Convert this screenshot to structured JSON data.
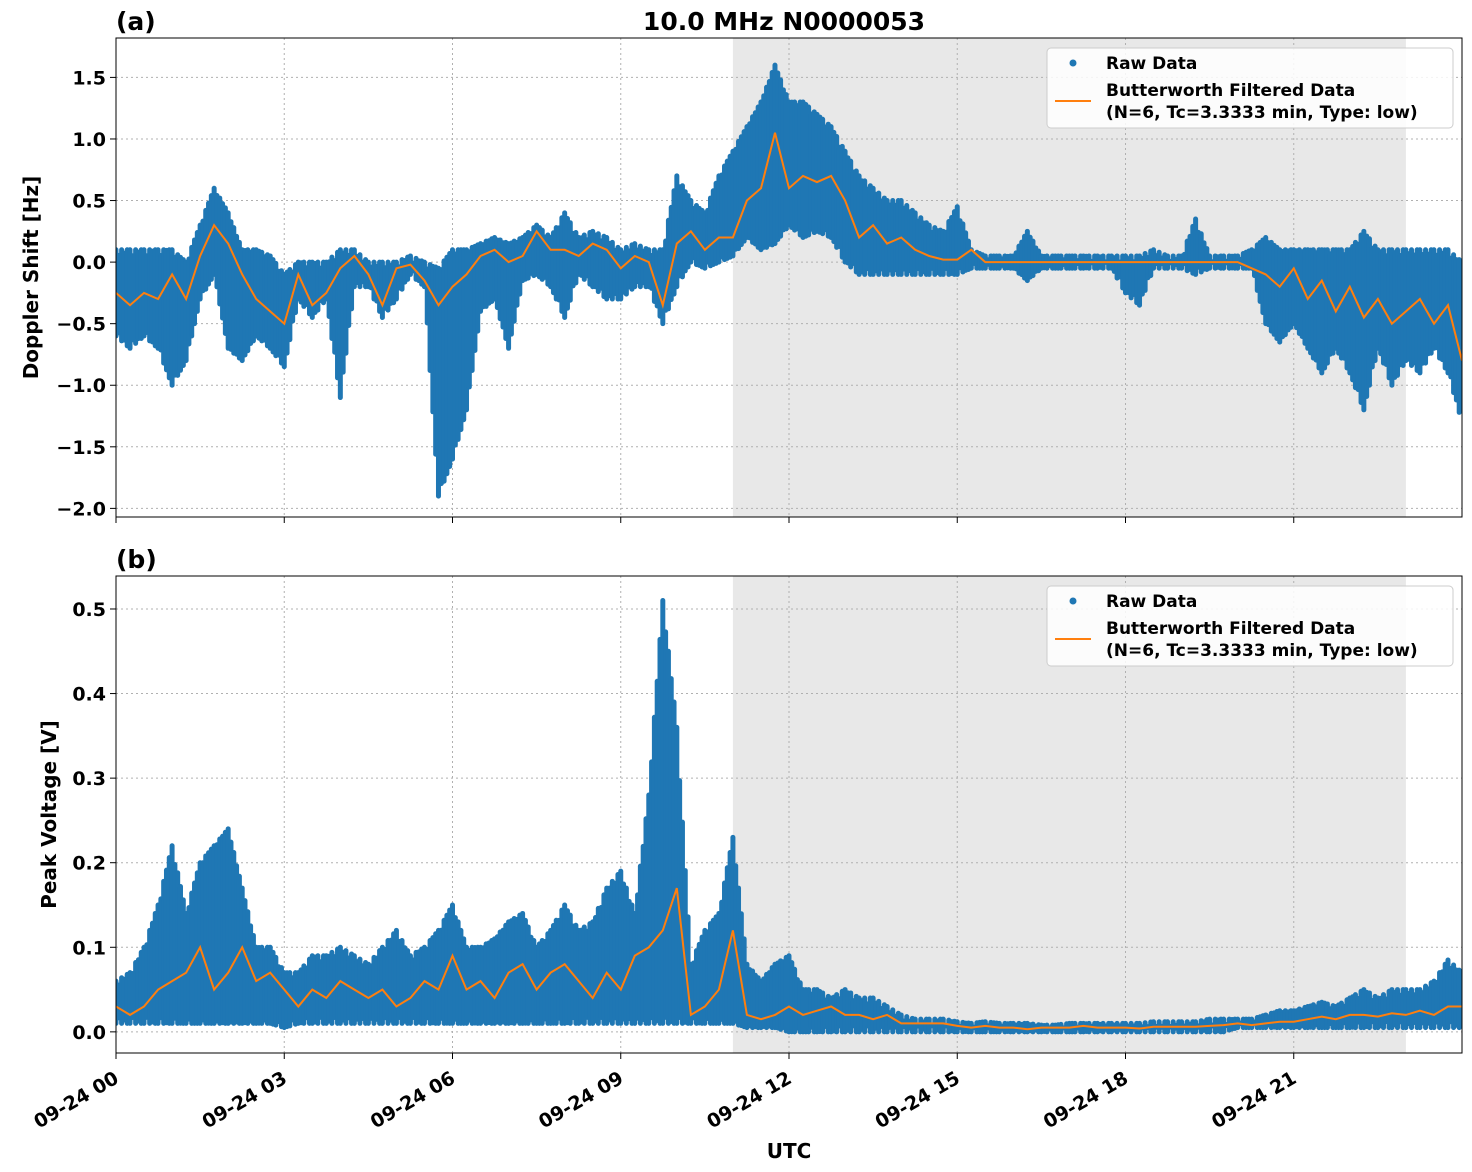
{
  "chart_data": {
    "title": "10.0 MHz N0000053",
    "xlabel": "UTC",
    "x_unit": "hours UTC on 09-24, sampled every 0.25 h",
    "xlim": [
      0,
      24
    ],
    "xticks": [
      0,
      3,
      6,
      9,
      12,
      15,
      18,
      21
    ],
    "xtick_labels": [
      "09-24 00",
      "09-24 03",
      "09-24 06",
      "09-24 09",
      "09-24 12",
      "09-24 15",
      "09-24 18",
      "09-24 21"
    ],
    "shaded_span": [
      11.0,
      23.0
    ],
    "colors": {
      "raw": "#1f77b4",
      "filtered": "#ff7f0e",
      "span": "#e8e8e8",
      "grid": "#b0b0b0"
    },
    "grid": true,
    "legend_placement": "top-right",
    "legend": [
      "Raw Data",
      "Butterworth Filtered Data",
      "(N=6, Tc=3.3333 min, Type: low)"
    ],
    "panels": [
      {
        "panel_label": "(a)",
        "type": "scatter+line",
        "ylabel": "Doppler Shift [Hz]",
        "ylim": [
          -2.07,
          1.82
        ],
        "yticks": [
          1.5,
          1.0,
          0.5,
          0.0,
          -0.5,
          -1.0,
          -1.5,
          -2.0
        ],
        "ytick_labels": [
          "1.5",
          "1.0",
          "0.5",
          "0.0",
          "−0.5",
          "−1.0",
          "−1.5",
          "−2.0"
        ],
        "filtered": [
          -0.25,
          -0.35,
          -0.25,
          -0.3,
          -0.1,
          -0.3,
          0.05,
          0.3,
          0.15,
          -0.1,
          -0.3,
          -0.4,
          -0.5,
          -0.1,
          -0.35,
          -0.25,
          -0.05,
          0.05,
          -0.1,
          -0.35,
          -0.05,
          -0.02,
          -0.15,
          -0.35,
          -0.2,
          -0.1,
          0.05,
          0.1,
          0.0,
          0.05,
          0.25,
          0.1,
          0.1,
          0.05,
          0.15,
          0.1,
          -0.05,
          0.05,
          0.0,
          -0.35,
          0.15,
          0.25,
          0.1,
          0.2,
          0.2,
          0.5,
          0.6,
          1.05,
          0.6,
          0.7,
          0.65,
          0.7,
          0.5,
          0.2,
          0.3,
          0.15,
          0.2,
          0.1,
          0.05,
          0.02,
          0.02,
          0.1,
          0.0,
          0.0,
          0,
          0,
          0,
          0,
          0,
          0,
          0,
          0,
          0,
          0,
          0,
          0,
          0,
          0,
          0,
          0,
          0.0,
          -0.05,
          -0.1,
          -0.2,
          -0.05,
          -0.3,
          -0.15,
          -0.4,
          -0.2,
          -0.45,
          -0.3,
          -0.5,
          -0.4,
          -0.3,
          -0.5,
          -0.35,
          -0.8
        ],
        "raw_max": [
          0.1,
          0.1,
          0.1,
          0.1,
          0.1,
          0.0,
          0.3,
          0.6,
          0.4,
          0.1,
          0.1,
          0.05,
          -0.1,
          0.0,
          0.0,
          0.0,
          0.1,
          0.1,
          0.0,
          0.0,
          0.0,
          0.05,
          0.0,
          -0.05,
          0.1,
          0.1,
          0.15,
          0.2,
          0.15,
          0.2,
          0.3,
          0.2,
          0.4,
          0.2,
          0.25,
          0.2,
          0.1,
          0.15,
          0.1,
          0.1,
          0.7,
          0.5,
          0.4,
          0.7,
          0.9,
          1.1,
          1.3,
          1.6,
          1.3,
          1.3,
          1.2,
          1.1,
          0.9,
          0.7,
          0.6,
          0.5,
          0.5,
          0.4,
          0.3,
          0.25,
          0.45,
          0.1,
          0.05,
          0.05,
          0.05,
          0.25,
          0.05,
          0.05,
          0.05,
          0.05,
          0.05,
          0.05,
          0.05,
          0.05,
          0.1,
          0.05,
          0.05,
          0.35,
          0.05,
          0.05,
          0.05,
          0.1,
          0.2,
          0.1,
          0.1,
          0.1,
          0.1,
          0.1,
          0.1,
          0.25,
          0.1,
          0.1,
          0.1,
          0.1,
          0.1,
          0.1,
          0.0
        ],
        "raw_min": [
          -0.6,
          -0.7,
          -0.6,
          -0.7,
          -1.0,
          -0.8,
          -0.3,
          -0.1,
          -0.7,
          -0.8,
          -0.6,
          -0.7,
          -0.85,
          -0.3,
          -0.45,
          -0.3,
          -1.1,
          -0.2,
          -0.2,
          -0.45,
          -0.3,
          -0.1,
          -0.2,
          -1.9,
          -1.6,
          -1.2,
          -0.4,
          -0.3,
          -0.7,
          -0.15,
          -0.1,
          -0.2,
          -0.45,
          -0.1,
          -0.2,
          -0.3,
          -0.3,
          -0.2,
          -0.2,
          -0.5,
          -0.2,
          0.0,
          -0.05,
          0.0,
          0.05,
          0.2,
          0.1,
          0.15,
          0.3,
          0.2,
          0.25,
          0.2,
          0.0,
          -0.1,
          -0.1,
          -0.1,
          -0.1,
          -0.1,
          -0.1,
          -0.1,
          -0.1,
          -0.05,
          -0.05,
          -0.05,
          -0.05,
          -0.15,
          -0.05,
          -0.05,
          -0.05,
          -0.05,
          -0.05,
          -0.05,
          -0.25,
          -0.35,
          -0.05,
          -0.05,
          -0.05,
          -0.1,
          -0.05,
          -0.05,
          -0.05,
          -0.05,
          -0.5,
          -0.65,
          -0.5,
          -0.7,
          -0.9,
          -0.7,
          -0.9,
          -1.2,
          -0.7,
          -1.0,
          -0.8,
          -0.9,
          -0.7,
          -0.9,
          -1.3
        ]
      },
      {
        "panel_label": "(b)",
        "type": "scatter+line",
        "ylabel": "Peak Voltage [V]",
        "ylim": [
          -0.025,
          0.539
        ],
        "yticks": [
          0.5,
          0.4,
          0.3,
          0.2,
          0.1,
          0.0
        ],
        "ytick_labels": [
          "0.5",
          "0.4",
          "0.3",
          "0.2",
          "0.1",
          "0.0"
        ],
        "filtered": [
          0.03,
          0.02,
          0.03,
          0.05,
          0.06,
          0.07,
          0.1,
          0.05,
          0.07,
          0.1,
          0.06,
          0.07,
          0.05,
          0.03,
          0.05,
          0.04,
          0.06,
          0.05,
          0.04,
          0.05,
          0.03,
          0.04,
          0.06,
          0.05,
          0.09,
          0.05,
          0.06,
          0.04,
          0.07,
          0.08,
          0.05,
          0.07,
          0.08,
          0.06,
          0.04,
          0.07,
          0.05,
          0.09,
          0.1,
          0.12,
          0.17,
          0.02,
          0.03,
          0.05,
          0.12,
          0.02,
          0.015,
          0.02,
          0.03,
          0.02,
          0.025,
          0.03,
          0.02,
          0.02,
          0.015,
          0.02,
          0.01,
          0.01,
          0.01,
          0.01,
          0.007,
          0.005,
          0.007,
          0.005,
          0.005,
          0.003,
          0.005,
          0.005,
          0.005,
          0.007,
          0.005,
          0.005,
          0.005,
          0.004,
          0.006,
          0.006,
          0.006,
          0.006,
          0.007,
          0.008,
          0.01,
          0.008,
          0.01,
          0.012,
          0.012,
          0.015,
          0.018,
          0.015,
          0.02,
          0.02,
          0.018,
          0.022,
          0.02,
          0.025,
          0.02,
          0.03,
          0.03
        ],
        "raw_max": [
          0.06,
          0.07,
          0.1,
          0.15,
          0.22,
          0.14,
          0.2,
          0.22,
          0.24,
          0.17,
          0.1,
          0.1,
          0.07,
          0.07,
          0.09,
          0.09,
          0.1,
          0.09,
          0.08,
          0.1,
          0.12,
          0.09,
          0.1,
          0.12,
          0.15,
          0.1,
          0.1,
          0.11,
          0.13,
          0.14,
          0.1,
          0.12,
          0.15,
          0.12,
          0.13,
          0.17,
          0.19,
          0.14,
          0.28,
          0.51,
          0.36,
          0.08,
          0.12,
          0.14,
          0.23,
          0.08,
          0.06,
          0.08,
          0.09,
          0.05,
          0.05,
          0.04,
          0.05,
          0.04,
          0.04,
          0.03,
          0.02,
          0.015,
          0.015,
          0.015,
          0.012,
          0.01,
          0.012,
          0.01,
          0.01,
          0.01,
          0.008,
          0.008,
          0.01,
          0.01,
          0.01,
          0.01,
          0.01,
          0.01,
          0.012,
          0.012,
          0.012,
          0.012,
          0.015,
          0.015,
          0.015,
          0.015,
          0.02,
          0.025,
          0.025,
          0.03,
          0.035,
          0.03,
          0.04,
          0.05,
          0.04,
          0.05,
          0.05,
          0.05,
          0.06,
          0.085,
          0.07
        ],
        "raw_min": [
          0.01,
          0.01,
          0.01,
          0.01,
          0.01,
          0.01,
          0.01,
          0.01,
          0.01,
          0.01,
          0.01,
          0.01,
          0.005,
          0.01,
          0.01,
          0.01,
          0.01,
          0.01,
          0.01,
          0.01,
          0.01,
          0.01,
          0.01,
          0.01,
          0.01,
          0.01,
          0.01,
          0.01,
          0.01,
          0.01,
          0.01,
          0.01,
          0.01,
          0.01,
          0.01,
          0.01,
          0.01,
          0.01,
          0.01,
          0.01,
          0.01,
          0.01,
          0.01,
          0.01,
          0.01,
          0.005,
          0.005,
          0.005,
          0.0,
          0.0,
          0.0,
          0.0,
          0.0,
          0.0,
          0.0,
          0.0,
          0.0,
          0.0,
          0.0,
          0.0,
          0.0,
          0.0,
          0.0,
          0.0,
          0.0,
          0.0,
          0.0,
          0.0,
          0.0,
          0.0,
          0.0,
          0.0,
          0.0,
          0.0,
          0.0,
          0.0,
          0.0,
          0.0,
          0.0,
          0.0,
          0.005,
          0.005,
          0.005,
          0.005,
          0.005,
          0.005,
          0.005,
          0.005,
          0.005,
          0.005,
          0.005,
          0.005,
          0.005,
          0.005,
          0.005,
          0.005,
          0.005
        ]
      }
    ]
  }
}
